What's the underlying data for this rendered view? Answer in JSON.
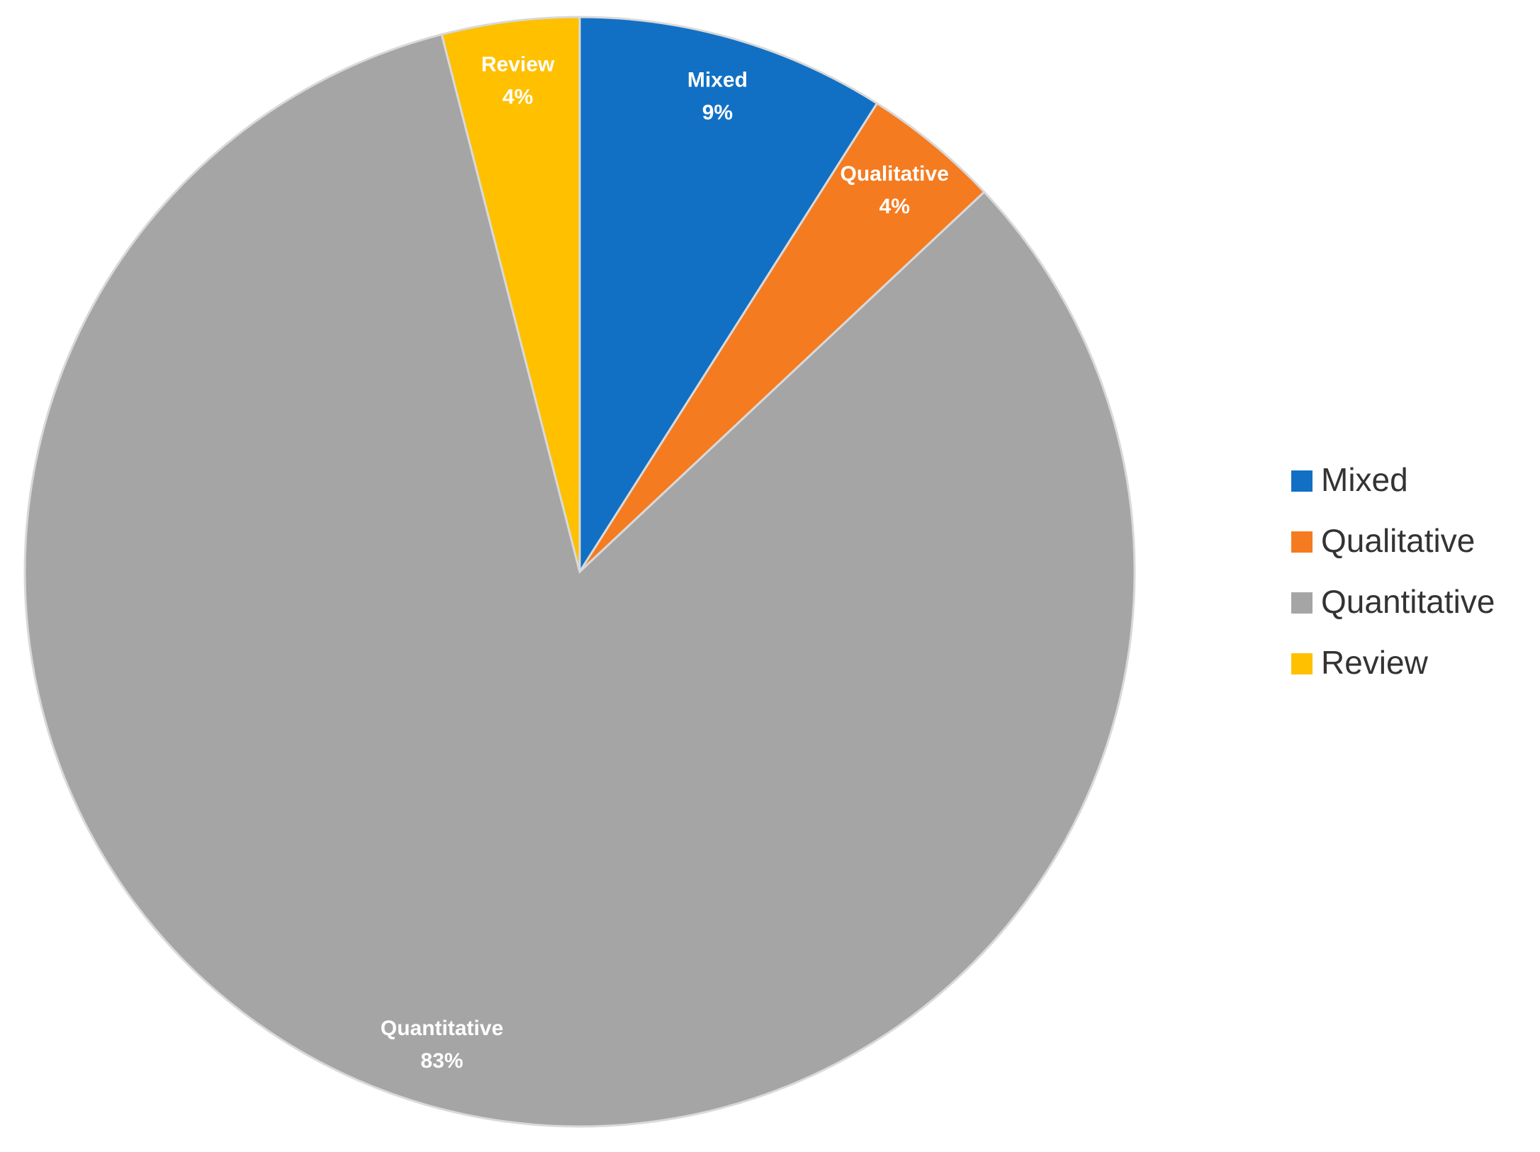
{
  "chart_data": {
    "type": "pie",
    "categories": [
      "Mixed",
      "Qualitative",
      "Quantitative",
      "Review"
    ],
    "values": [
      9,
      4,
      83,
      4
    ],
    "value_labels": [
      "9%",
      "4%",
      "83%",
      "4%"
    ],
    "colors": [
      "#1170c4",
      "#f47b20",
      "#a5a5a5",
      "#ffc000"
    ],
    "legend": "right"
  }
}
